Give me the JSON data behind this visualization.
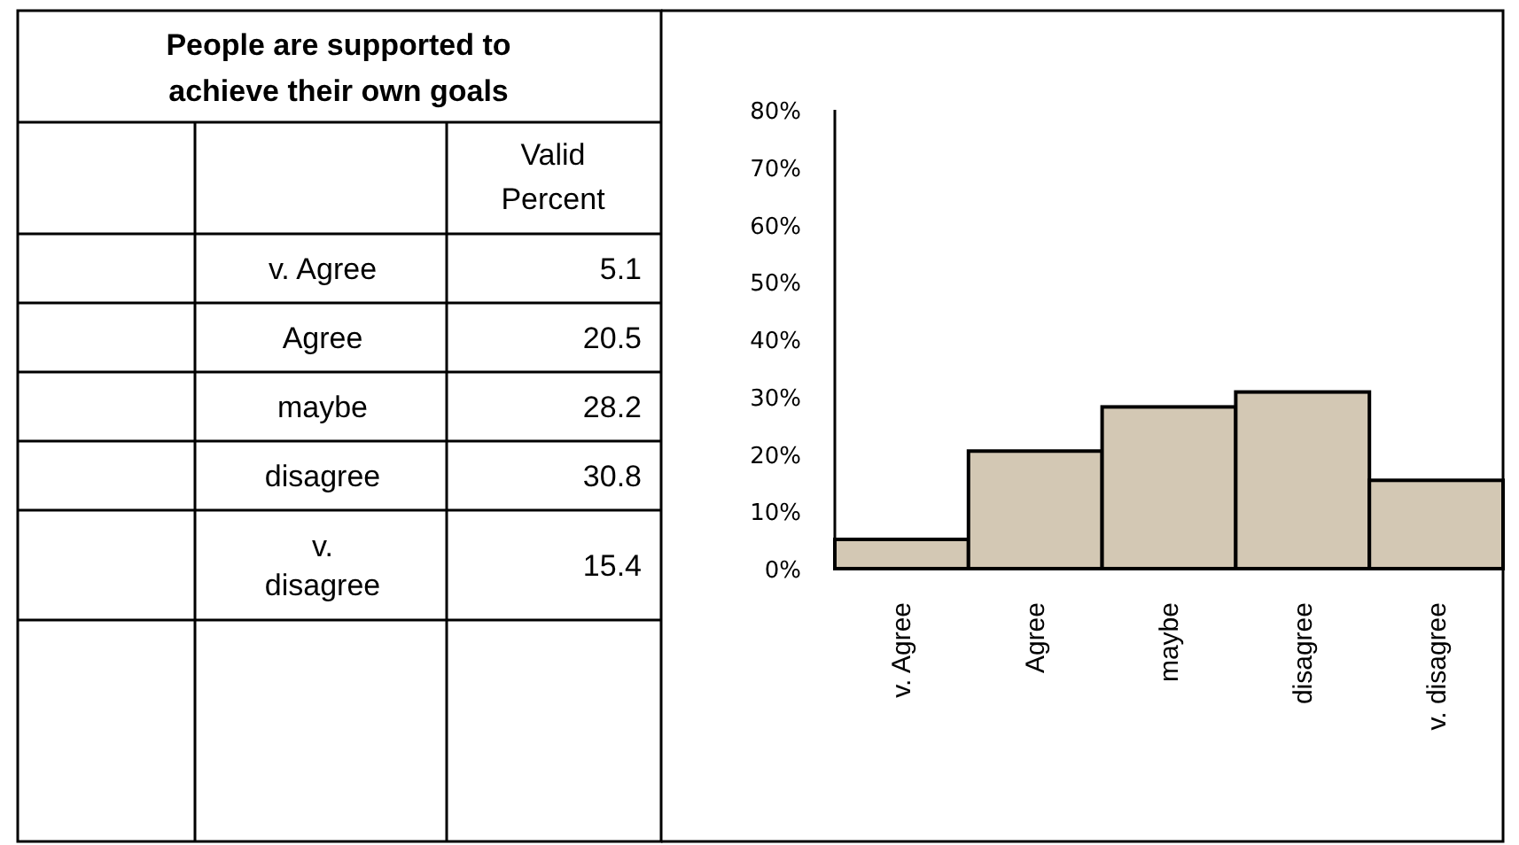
{
  "chart_data": [
    {
      "type": "other",
      "title": "People are supported to achieve their own goals",
      "annotations": [
        "Valid Percent",
        "v. Agree",
        "5.1",
        "Agree",
        "20.5",
        "maybe",
        "28.2",
        "disagree",
        "30.8",
        "v. disagree",
        "15.4"
      ]
    },
    {
      "type": "bar",
      "categories": [
        "v. Agree",
        "Agree",
        "maybe",
        "disagree",
        "v. disagree"
      ],
      "values": [
        5.1,
        20.5,
        28.2,
        30.8,
        15.4
      ],
      "color": "#d3c8b4",
      "ylim": [
        0,
        80
      ],
      "yticks": [
        {
          "value": 0,
          "label": "0%"
        },
        {
          "value": 10,
          "label": "10%"
        },
        {
          "value": 20,
          "label": "20%"
        },
        {
          "value": 30,
          "label": "30%"
        },
        {
          "value": 40,
          "label": "40%"
        },
        {
          "value": 50,
          "label": "50%"
        },
        {
          "value": 60,
          "label": "60%"
        },
        {
          "value": 70,
          "label": "70%"
        },
        {
          "value": 80,
          "label": "80%"
        }
      ]
    }
  ]
}
